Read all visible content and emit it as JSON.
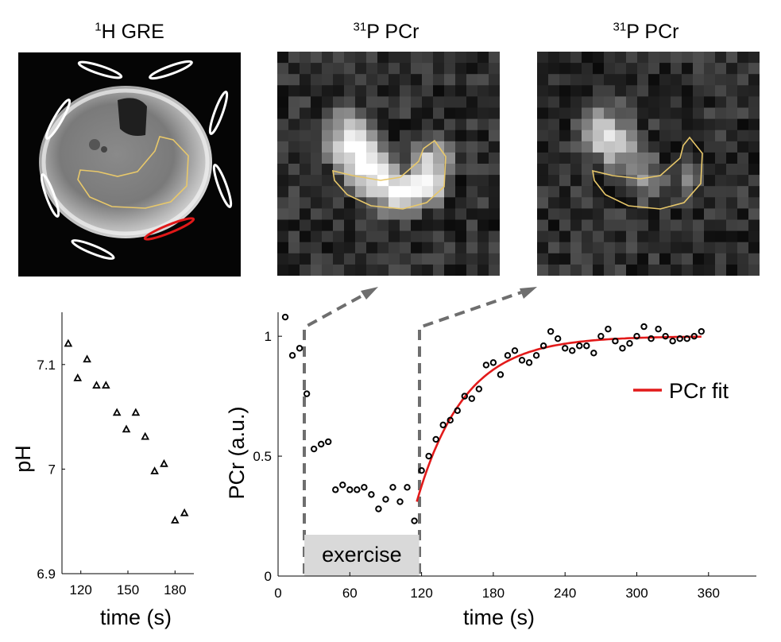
{
  "panels": {
    "p1": {
      "sup": "1",
      "title": "H GRE"
    },
    "p2": {
      "sup": "31",
      "title": "P PCr"
    },
    "p3": {
      "sup": "31",
      "title": "P PCr"
    }
  },
  "colors": {
    "roi": "#e8c86a",
    "coil": "#ffffff",
    "active_coil": "#e01818",
    "fit": "#e21a1a",
    "dashed_arrow": "#6e6e6e",
    "exercise_box": "#d9d9d9"
  },
  "chart_data": [
    {
      "type": "scatter",
      "name": "pH",
      "xlabel": "time (s)",
      "ylabel": "pH",
      "xlim": [
        108,
        192
      ],
      "ylim": [
        6.9,
        7.15
      ],
      "xticks": [
        120,
        150,
        180
      ],
      "yticks": [
        6.9,
        7,
        7.1
      ],
      "ytick_labels": [
        "6.9",
        "7",
        "7.1"
      ],
      "marker": "triangle",
      "x": [
        112,
        118,
        124,
        130,
        136,
        143,
        149,
        155,
        161,
        167,
        173,
        180,
        186
      ],
      "y": [
        7.12,
        7.087,
        7.105,
        7.08,
        7.08,
        7.054,
        7.038,
        7.054,
        7.031,
        6.998,
        7.005,
        6.951,
        6.958
      ]
    },
    {
      "type": "scatter",
      "name": "PCr",
      "xlabel": "time (s)",
      "ylabel": "PCr (a.u.)",
      "xlim": [
        0,
        400
      ],
      "ylim": [
        0,
        1.1
      ],
      "xticks": [
        0,
        60,
        120,
        180,
        240,
        300,
        360
      ],
      "yticks": [
        0,
        0.5,
        1
      ],
      "ytick_labels": [
        "0",
        "0.5",
        "1"
      ],
      "marker": "circle",
      "x": [
        6,
        12,
        18,
        24,
        30,
        36,
        42,
        48,
        54,
        60,
        66,
        72,
        78,
        84,
        90,
        96,
        102,
        108,
        114,
        120,
        126,
        132,
        138,
        144,
        150,
        156,
        162,
        168,
        174,
        180,
        186,
        192,
        198,
        204,
        210,
        216,
        222,
        228,
        234,
        240,
        246,
        252,
        258,
        264,
        270,
        276,
        282,
        288,
        294,
        300,
        306,
        312,
        318,
        324,
        330,
        336,
        342,
        348,
        354
      ],
      "y": [
        1.08,
        0.92,
        0.95,
        0.76,
        0.53,
        0.55,
        0.56,
        0.36,
        0.38,
        0.36,
        0.36,
        0.37,
        0.34,
        0.28,
        0.32,
        0.37,
        0.31,
        0.37,
        0.23,
        0.44,
        0.5,
        0.57,
        0.63,
        0.65,
        0.69,
        0.75,
        0.74,
        0.78,
        0.88,
        0.89,
        0.84,
        0.92,
        0.94,
        0.9,
        0.89,
        0.92,
        0.96,
        1.02,
        0.99,
        0.95,
        0.94,
        0.96,
        0.96,
        0.93,
        1.0,
        1.03,
        0.98,
        0.95,
        0.97,
        1.0,
        1.04,
        0.99,
        1.03,
        1.0,
        0.98,
        0.99,
        0.99,
        1.0,
        1.02
      ],
      "fit": {
        "label": "PCr fit",
        "t_start": 116,
        "t_end": 354,
        "y0": 0.31,
        "y_inf": 1.0,
        "tau": 40
      },
      "exercise": {
        "label": "exercise",
        "x_start": 22,
        "x_end": 118
      },
      "legend": "right"
    }
  ]
}
